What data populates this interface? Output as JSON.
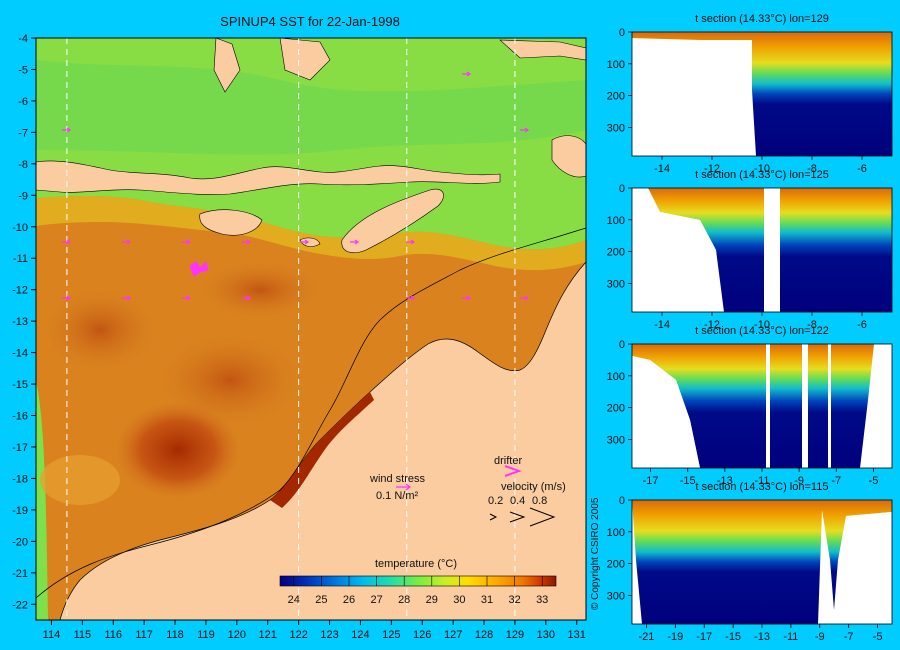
{
  "page": {
    "background": "#00ccff",
    "land_color": "#fbcca0",
    "plot_bg": "#ffffff"
  },
  "main_map": {
    "title": "SPINUP4 SST for 22-Jan-1998",
    "x_ticks": [
      "114",
      "115",
      "116",
      "117",
      "118",
      "119",
      "120",
      "121",
      "122",
      "123",
      "124",
      "125",
      "126",
      "127",
      "128",
      "129",
      "130",
      "131"
    ],
    "y_ticks": [
      "-4",
      "-5",
      "-6",
      "-7",
      "-8",
      "-9",
      "-10",
      "-11",
      "-12",
      "-13",
      "-14",
      "-15",
      "-16",
      "-17",
      "-18",
      "-19",
      "-20",
      "-21",
      "-22"
    ],
    "section_lines_lon": [
      114.5,
      122,
      125.5,
      129
    ],
    "wind_stress": {
      "label": "wind stress",
      "scale_label": "0.1 N/m²",
      "arrow_color": "#ff33ff"
    },
    "drifter": {
      "label": "drifter",
      "marker_color": "#ff33ff"
    },
    "velocity": {
      "label": "velocity (m/s)",
      "scale": [
        "0.2",
        "0.4",
        "0.8"
      ]
    },
    "colorbar": {
      "title": "temperature (°C)",
      "ticks": [
        "24",
        "25",
        "26",
        "27",
        "28",
        "29",
        "30",
        "31",
        "32",
        "33"
      ],
      "colors": [
        "#00007f",
        "#0033bb",
        "#0077dd",
        "#00bbee",
        "#22ddaa",
        "#77ee44",
        "#ccee22",
        "#ffdd00",
        "#ffaa00",
        "#ee7700",
        "#cc3300",
        "#8b1a00"
      ]
    }
  },
  "chart_data": [
    {
      "type": "heatmap",
      "title": "SPINUP4 SST for 22-Jan-1998",
      "xlabel": "",
      "ylabel": "",
      "xlim": [
        113.5,
        131.3
      ],
      "ylim": [
        -22.5,
        -4
      ],
      "x_ticks": [
        114,
        115,
        116,
        117,
        118,
        119,
        120,
        121,
        122,
        123,
        124,
        125,
        126,
        127,
        128,
        129,
        130,
        131
      ],
      "y_ticks": [
        -4,
        -5,
        -6,
        -7,
        -8,
        -9,
        -10,
        -11,
        -12,
        -13,
        -14,
        -15,
        -16,
        -17,
        -18,
        -19,
        -20,
        -21,
        -22
      ],
      "colorbar": {
        "label": "temperature (°C)",
        "range": [
          23.5,
          33.5
        ],
        "ticks": [
          24,
          25,
          26,
          27,
          28,
          29,
          30,
          31,
          32,
          33
        ]
      },
      "section_longitudes": [
        114.5,
        122,
        125.5,
        129
      ]
    },
    {
      "type": "heatmap",
      "title": "t section (14.33°C) lon=129",
      "x_ticks": [
        -14,
        -12,
        -10,
        -8,
        -6
      ],
      "y_ticks": [
        0,
        100,
        200,
        300
      ],
      "xlim": [
        -15.2,
        -4.8
      ],
      "ylim": [
        390,
        0
      ]
    },
    {
      "type": "heatmap",
      "title": "t section (14.33°C) lon=125",
      "x_ticks": [
        -14,
        -12,
        -10,
        -8,
        -6
      ],
      "y_ticks": [
        0,
        100,
        200,
        300
      ],
      "xlim": [
        -15.2,
        -4.8
      ],
      "ylim": [
        390,
        0
      ]
    },
    {
      "type": "heatmap",
      "title": "t section (14.33°C) lon=122",
      "x_ticks": [
        -17,
        -15,
        -13,
        -11,
        -9,
        -7,
        -5
      ],
      "y_ticks": [
        0,
        100,
        200,
        300
      ],
      "xlim": [
        -18,
        -4
      ],
      "ylim": [
        390,
        0
      ]
    },
    {
      "type": "heatmap",
      "title": "t section (14.33°C) lon=115",
      "x_ticks": [
        -21,
        -19,
        -17,
        -15,
        -13,
        -11,
        -9,
        -7,
        -5
      ],
      "y_ticks": [
        0,
        100,
        200,
        300
      ],
      "xlim": [
        -22,
        -4
      ],
      "ylim": [
        390,
        0
      ]
    }
  ],
  "copyright": "© Copyright CSIRO 2005"
}
